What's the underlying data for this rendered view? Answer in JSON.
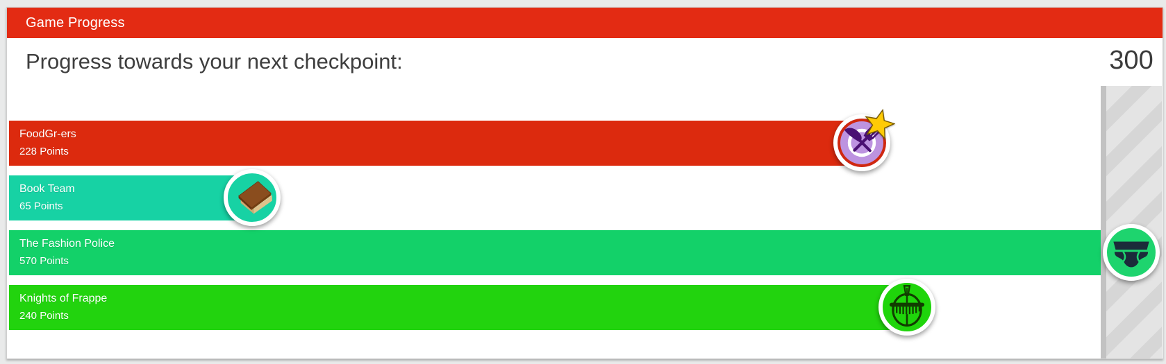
{
  "header": {
    "title": "Game Progress",
    "color": "#e32b13"
  },
  "subheader": {
    "label": "Progress towards your next checkpoint:",
    "checkpoint_value": "300"
  },
  "checkpoint": {
    "max_points": 300,
    "band_stripe_light": "#e4e4e4",
    "band_stripe_dark": "#d6d6d6",
    "band_edge": "#c2c2c2"
  },
  "chart_data": {
    "type": "bar",
    "title": "Progress towards your next checkpoint:",
    "categories": [
      "FoodGr-ers",
      "Book Team",
      "The Fashion Police",
      "Knights of Frappe"
    ],
    "values": [
      228,
      65,
      570,
      240
    ],
    "checkpoint": 300,
    "xlim": [
      0,
      300
    ]
  },
  "teams": [
    {
      "name": "FoodGr-ers",
      "points": 228,
      "points_label": "228 Points",
      "bar_color": "#dc2a0e",
      "icon": "crossed-utensils",
      "badge_color": "#bd93e0",
      "badge_ring_color": "#d02810",
      "glyph_color": "#4a1173",
      "has_star": true,
      "star_color": "#ffcb05"
    },
    {
      "name": "Book Team",
      "points": 65,
      "points_label": "65 Points",
      "bar_color": "#17d2a4",
      "icon": "book",
      "badge_color": "#17d2a4",
      "glyph_color": "#8a4d1e",
      "has_star": false
    },
    {
      "name": "The Fashion Police",
      "points": 570,
      "points_label": "570 Points",
      "bar_color": "#13d169",
      "icon": "briefs",
      "badge_color": "#1ed46e",
      "glyph_color": "#1b2b3a",
      "has_star": false
    },
    {
      "name": "Knights of Frappe",
      "points": 240,
      "points_label": "240 Points",
      "bar_color": "#22d30e",
      "icon": "knight-helmet",
      "badge_color": "#1fd50b",
      "glyph_color": "#113d00",
      "has_star": false
    }
  ]
}
